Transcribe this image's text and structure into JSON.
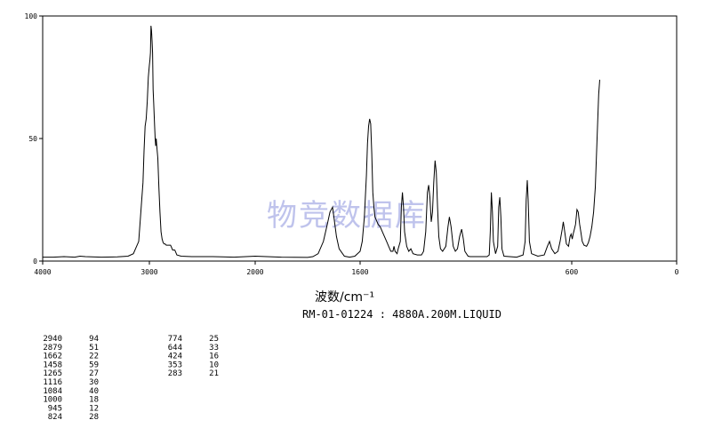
{
  "chart_data": {
    "type": "line",
    "xlabel": "波数/cm⁻¹",
    "ylabel": "",
    "xlim": [
      4000,
      0
    ],
    "ylim": [
      0,
      100
    ],
    "x_ticks": [
      "4000",
      "3000",
      "2000",
      "1600",
      "600",
      "0"
    ],
    "y_ticks": [
      "100",
      "50",
      "0"
    ],
    "sample_info": "RM-01-01224 : 4880A.200M.LIQUID",
    "watermark": "物竞数据库",
    "grid": false,
    "series": [
      {
        "values_xy": [
          [
            4000,
            1.6
          ],
          [
            3900,
            1.6
          ],
          [
            3800,
            1.8
          ],
          [
            3700,
            1.6
          ],
          [
            3650,
            2.0
          ],
          [
            3600,
            1.8
          ],
          [
            3450,
            1.6
          ],
          [
            3300,
            1.7
          ],
          [
            3200,
            2.0
          ],
          [
            3150,
            3.0
          ],
          [
            3100,
            8.0
          ],
          [
            3080,
            20
          ],
          [
            3060,
            32
          ],
          [
            3050,
            45
          ],
          [
            3040,
            55
          ],
          [
            3030,
            58
          ],
          [
            3020,
            65
          ],
          [
            3010,
            75
          ],
          [
            3000,
            80
          ],
          [
            2995,
            82
          ],
          [
            2990,
            85
          ],
          [
            2985,
            96
          ],
          [
            2980,
            94
          ],
          [
            2975,
            90
          ],
          [
            2970,
            85
          ],
          [
            2965,
            70
          ],
          [
            2960,
            65
          ],
          [
            2950,
            55
          ],
          [
            2945,
            50
          ],
          [
            2940,
            47
          ],
          [
            2935,
            50
          ],
          [
            2930,
            47
          ],
          [
            2920,
            42
          ],
          [
            2910,
            30
          ],
          [
            2900,
            20
          ],
          [
            2890,
            12
          ],
          [
            2880,
            9
          ],
          [
            2870,
            7.5
          ],
          [
            2860,
            7
          ],
          [
            2850,
            7
          ],
          [
            2840,
            6.5
          ],
          [
            2800,
            6.5
          ],
          [
            2780,
            4.5
          ],
          [
            2760,
            4.5
          ],
          [
            2740,
            2.5
          ],
          [
            2700,
            2
          ],
          [
            2600,
            1.8
          ],
          [
            2400,
            1.8
          ],
          [
            2200,
            1.6
          ],
          [
            2000,
            2.0
          ],
          [
            1900,
            1.6
          ],
          [
            1800,
            1.5
          ],
          [
            1780,
            1.8
          ],
          [
            1760,
            3
          ],
          [
            1740,
            8
          ],
          [
            1725,
            15
          ],
          [
            1715,
            20
          ],
          [
            1705,
            22
          ],
          [
            1700,
            18
          ],
          [
            1690,
            10
          ],
          [
            1680,
            5
          ],
          [
            1660,
            2
          ],
          [
            1640,
            1.6
          ],
          [
            1620,
            2
          ],
          [
            1600,
            4
          ],
          [
            1590,
            8
          ],
          [
            1580,
            18
          ],
          [
            1570,
            35
          ],
          [
            1565,
            48
          ],
          [
            1560,
            55
          ],
          [
            1555,
            58
          ],
          [
            1550,
            56
          ],
          [
            1545,
            44
          ],
          [
            1540,
            28
          ],
          [
            1535,
            22
          ],
          [
            1530,
            18
          ],
          [
            1525,
            17
          ],
          [
            1515,
            15
          ],
          [
            1505,
            14
          ],
          [
            1495,
            12
          ],
          [
            1485,
            10
          ],
          [
            1475,
            8
          ],
          [
            1465,
            6
          ],
          [
            1455,
            4
          ],
          [
            1445,
            4
          ],
          [
            1440,
            6
          ],
          [
            1435,
            4
          ],
          [
            1425,
            3
          ],
          [
            1420,
            5
          ],
          [
            1410,
            8
          ],
          [
            1405,
            22
          ],
          [
            1400,
            28
          ],
          [
            1395,
            22
          ],
          [
            1390,
            12
          ],
          [
            1380,
            6
          ],
          [
            1370,
            4
          ],
          [
            1360,
            5
          ],
          [
            1350,
            3
          ],
          [
            1330,
            2.5
          ],
          [
            1310,
            2.5
          ],
          [
            1300,
            4
          ],
          [
            1290,
            12
          ],
          [
            1282,
            28
          ],
          [
            1276,
            31
          ],
          [
            1270,
            26
          ],
          [
            1264,
            16
          ],
          [
            1258,
            20
          ],
          [
            1252,
            32
          ],
          [
            1246,
            41
          ],
          [
            1240,
            36
          ],
          [
            1234,
            22
          ],
          [
            1228,
            10
          ],
          [
            1220,
            5
          ],
          [
            1210,
            4
          ],
          [
            1195,
            6
          ],
          [
            1185,
            14
          ],
          [
            1178,
            18
          ],
          [
            1170,
            14
          ],
          [
            1160,
            6
          ],
          [
            1150,
            4
          ],
          [
            1140,
            5
          ],
          [
            1130,
            10
          ],
          [
            1120,
            13
          ],
          [
            1112,
            9
          ],
          [
            1105,
            4
          ],
          [
            1090,
            2
          ],
          [
            1080,
            1.8
          ],
          [
            1060,
            1.8
          ],
          [
            1000,
            1.8
          ],
          [
            990,
            2.5
          ],
          [
            985,
            12
          ],
          [
            980,
            28
          ],
          [
            975,
            20
          ],
          [
            970,
            8
          ],
          [
            960,
            3
          ],
          [
            950,
            6
          ],
          [
            945,
            22
          ],
          [
            940,
            26
          ],
          [
            935,
            18
          ],
          [
            930,
            5
          ],
          [
            920,
            2
          ],
          [
            860,
            1.6
          ],
          [
            830,
            2.5
          ],
          [
            820,
            8
          ],
          [
            815,
            25
          ],
          [
            810,
            33
          ],
          [
            806,
            25
          ],
          [
            800,
            8
          ],
          [
            790,
            3
          ],
          [
            760,
            2
          ],
          [
            730,
            2.5
          ],
          [
            715,
            6
          ],
          [
            705,
            8
          ],
          [
            695,
            5
          ],
          [
            680,
            3
          ],
          [
            665,
            4
          ],
          [
            655,
            8
          ],
          [
            645,
            13
          ],
          [
            640,
            16
          ],
          [
            633,
            12
          ],
          [
            625,
            7
          ],
          [
            615,
            6
          ],
          [
            608,
            10
          ],
          [
            603,
            11
          ],
          [
            597,
            9
          ],
          [
            592,
            11
          ],
          [
            585,
            13
          ],
          [
            578,
            15
          ],
          [
            570,
            21
          ],
          [
            563,
            20
          ],
          [
            555,
            15
          ],
          [
            548,
            12
          ],
          [
            540,
            8
          ],
          [
            530,
            6.5
          ],
          [
            515,
            6
          ],
          [
            505,
            7.5
          ],
          [
            495,
            10
          ],
          [
            485,
            14
          ],
          [
            475,
            20
          ],
          [
            465,
            30
          ],
          [
            455,
            50
          ],
          [
            446,
            68
          ],
          [
            440,
            74
          ]
        ]
      }
    ],
    "peak_table": [
      [
        "2940",
        "94"
      ],
      [
        "2879",
        "51"
      ],
      [
        "1662",
        "22"
      ],
      [
        "1458",
        "59"
      ],
      [
        "1265",
        "27"
      ],
      [
        "1116",
        "30"
      ],
      [
        "1084",
        "40"
      ],
      [
        "1000",
        "18"
      ],
      [
        "945",
        "12"
      ],
      [
        "824",
        "28"
      ],
      [
        "774",
        "25"
      ],
      [
        "644",
        "33"
      ],
      [
        "424",
        "16"
      ],
      [
        "353",
        "10"
      ],
      [
        "283",
        "21"
      ]
    ]
  }
}
